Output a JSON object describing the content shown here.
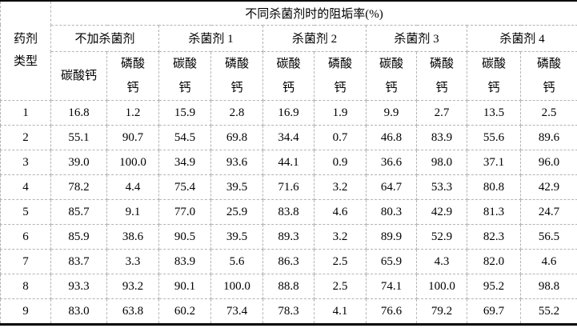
{
  "colors": {
    "background": "#ffffff",
    "text": "#000000",
    "grid_dashed": "#b4b4b4",
    "rule_solid": "#000000"
  },
  "table": {
    "corner_header": "药剂\n类型",
    "main_header": "不同杀菌剂时的阻垢率(%)",
    "group_headers": [
      "不加杀菌剂",
      "杀菌剂 1",
      "杀菌剂 2",
      "杀菌剂 3",
      "杀菌剂 4"
    ],
    "sub_headers": [
      "碳酸钙",
      "磷酸\n钙",
      "碳酸\n钙",
      "磷酸\n钙",
      "碳酸\n钙",
      "磷酸\n钙",
      "碳酸\n钙",
      "磷酸\n钙",
      "碳酸\n钙",
      "磷酸\n钙"
    ],
    "rows": [
      {
        "label": "1",
        "values": [
          "16.8",
          "1.2",
          "15.9",
          "2.8",
          "16.9",
          "1.9",
          "9.9",
          "2.7",
          "13.5",
          "2.5"
        ]
      },
      {
        "label": "2",
        "values": [
          "55.1",
          "90.7",
          "54.5",
          "69.8",
          "34.4",
          "0.7",
          "46.8",
          "83.9",
          "55.6",
          "89.6"
        ]
      },
      {
        "label": "3",
        "values": [
          "39.0",
          "100.0",
          "34.9",
          "93.6",
          "44.1",
          "0.9",
          "36.6",
          "98.0",
          "37.1",
          "96.0"
        ]
      },
      {
        "label": "4",
        "values": [
          "78.2",
          "4.4",
          "75.4",
          "39.5",
          "71.6",
          "3.2",
          "64.7",
          "53.3",
          "80.8",
          "42.9"
        ]
      },
      {
        "label": "5",
        "values": [
          "85.7",
          "9.1",
          "77.0",
          "25.9",
          "83.8",
          "4.6",
          "80.3",
          "42.9",
          "81.3",
          "24.7"
        ]
      },
      {
        "label": "6",
        "values": [
          "85.9",
          "38.6",
          "90.5",
          "39.5",
          "89.3",
          "3.2",
          "89.9",
          "52.9",
          "82.3",
          "56.5"
        ]
      },
      {
        "label": "7",
        "values": [
          "83.7",
          "3.3",
          "83.9",
          "5.6",
          "86.3",
          "2.5",
          "65.9",
          "4.3",
          "82.0",
          "4.6"
        ]
      },
      {
        "label": "8",
        "values": [
          "93.3",
          "93.2",
          "90.1",
          "100.0",
          "88.8",
          "2.5",
          "74.1",
          "100.0",
          "95.2",
          "98.8"
        ]
      },
      {
        "label": "9",
        "values": [
          "83.0",
          "63.8",
          "60.2",
          "73.4",
          "78.3",
          "4.1",
          "76.6",
          "79.2",
          "69.7",
          "55.2"
        ]
      }
    ]
  }
}
